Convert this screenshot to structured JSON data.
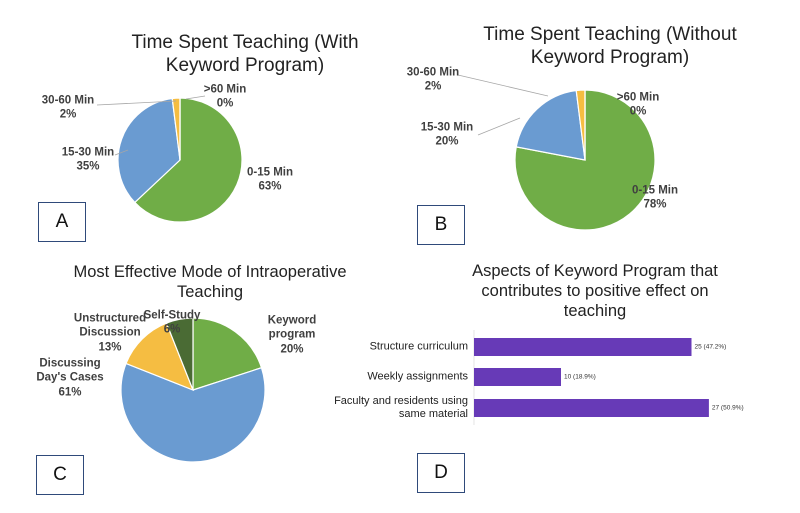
{
  "chart_data": [
    {
      "type": "pie",
      "title": "Time Spent Teaching (With Keyword Program)",
      "panel_label": "A",
      "categories": [
        "0-15 Min",
        "15-30 Min",
        "30-60 Min",
        ">60 Min"
      ],
      "values": [
        63,
        35,
        2,
        0
      ],
      "value_labels": [
        "63%",
        "35%",
        "2%",
        "0%"
      ],
      "colors": [
        "#70ad47",
        "#6a9bd1",
        "#f5bd42",
        "#a5a5a5"
      ]
    },
    {
      "type": "pie",
      "title": "Time Spent Teaching (Without Keyword Program)",
      "panel_label": "B",
      "categories": [
        "0-15 Min",
        "15-30 Min",
        "30-60 Min",
        ">60 Min"
      ],
      "values": [
        78,
        20,
        2,
        0
      ],
      "value_labels": [
        "78%",
        "20%",
        "2%",
        "0%"
      ],
      "colors": [
        "#70ad47",
        "#6a9bd1",
        "#f5bd42",
        "#a5a5a5"
      ]
    },
    {
      "type": "pie",
      "title": "Most Effective Mode of Intraoperative Teaching",
      "panel_label": "C",
      "categories": [
        "Keyword program",
        "Discussing Day's Cases",
        "Unstructured Discussion",
        "Self-Study"
      ],
      "values": [
        20,
        61,
        13,
        6
      ],
      "value_labels": [
        "20%",
        "61%",
        "13%",
        "6%"
      ],
      "colors": [
        "#70ad47",
        "#6a9bd1",
        "#f5bd42",
        "#4a6b34"
      ]
    },
    {
      "type": "bar",
      "orientation": "horizontal",
      "title": "Aspects of Keyword Program that contributes to positive effect on teaching",
      "panel_label": "D",
      "categories": [
        "Structure curriculum",
        "Weekly assignments",
        "Faculty and residents using same material"
      ],
      "values": [
        25,
        10,
        27
      ],
      "value_labels": [
        "25 (47.2%)",
        "10 (18.9%)",
        "27 (50.9%)"
      ],
      "color": "#673ab7",
      "xlim": [
        0,
        30
      ]
    }
  ]
}
